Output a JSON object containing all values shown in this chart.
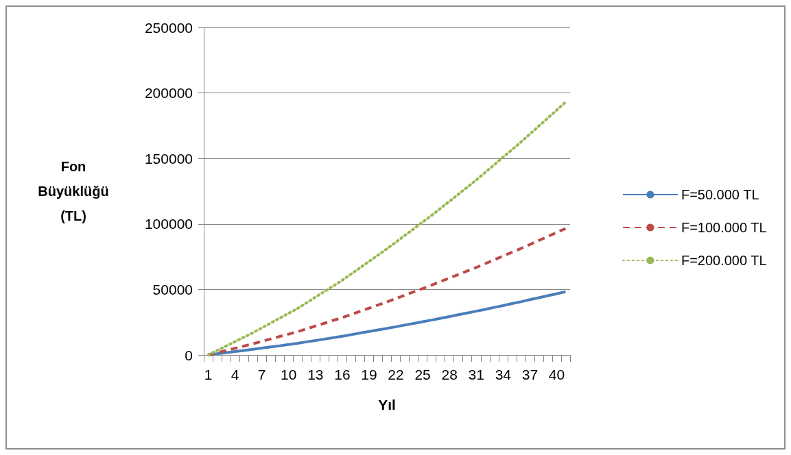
{
  "chart_data": {
    "type": "line",
    "xlabel": "Yıl",
    "ylabel": "Fon Büyüklüğü (TL)",
    "categories": [
      "1",
      null,
      null,
      "4",
      null,
      null,
      "7",
      null,
      null,
      "10",
      null,
      null,
      "13",
      null,
      null,
      "16",
      null,
      null,
      "19",
      null,
      null,
      "22",
      null,
      null,
      "25",
      null,
      null,
      "28",
      null,
      null,
      "31",
      null,
      null,
      "34",
      null,
      null,
      "37",
      null,
      null,
      "40",
      null
    ],
    "ylim": [
      0,
      250000
    ],
    "yticks": [
      0,
      50000,
      100000,
      150000,
      200000,
      250000
    ],
    "grid": "y",
    "legend": "right",
    "marker": "none",
    "series": [
      {
        "name": "F=50.000 TL",
        "color": "#4a7ebb",
        "line_style": "solid",
        "values": [
          0,
          900,
          1700,
          2600,
          3400,
          4300,
          5200,
          6100,
          7000,
          8000,
          8900,
          10000,
          11000,
          12100,
          13200,
          14300,
          15500,
          16700,
          17900,
          19100,
          20300,
          21500,
          22800,
          24100,
          25400,
          26600,
          28000,
          29300,
          30700,
          32000,
          33400,
          34800,
          36300,
          37700,
          39200,
          40600,
          42200,
          43700,
          45200,
          46700,
          48300
        ]
      },
      {
        "name": "F=100.000 TL",
        "color": "#be4b48",
        "line_style": "dashed",
        "values": [
          0,
          1700,
          3400,
          5100,
          6800,
          8500,
          10400,
          12200,
          14100,
          15900,
          17800,
          19900,
          22100,
          24200,
          26400,
          28500,
          30900,
          33300,
          35700,
          38100,
          40500,
          43100,
          45600,
          48200,
          50700,
          53300,
          56000,
          58700,
          61400,
          64100,
          66800,
          69700,
          72600,
          75500,
          78400,
          81300,
          84300,
          87400,
          90400,
          93500,
          96500
        ]
      },
      {
        "name": "F=200.000 TL",
        "color": "#98b954",
        "line_style": "dotted",
        "values": [
          0,
          3400,
          6800,
          10200,
          13600,
          17000,
          20700,
          24400,
          28100,
          31800,
          35500,
          39800,
          44100,
          48400,
          52700,
          57000,
          61800,
          66600,
          71400,
          76200,
          81000,
          86100,
          91200,
          96300,
          101400,
          106500,
          111900,
          117300,
          122700,
          128100,
          133500,
          139300,
          145100,
          150900,
          156700,
          162500,
          168600,
          174700,
          180800,
          186900,
          193000
        ]
      }
    ]
  }
}
